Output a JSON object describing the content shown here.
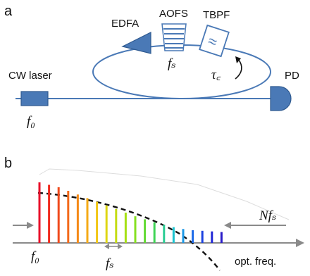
{
  "panel_a": {
    "label": "a",
    "source_label": "CW laser",
    "source_freq": "f₀",
    "amplifier_label": "EDFA",
    "shifter_label": "AOFS",
    "shifter_freq": "fₛ",
    "filter_label": "TBPF",
    "filter_symbol": "≈",
    "delay_label": "τ꜀",
    "detector_label": "PD"
  },
  "panel_b": {
    "label": "b",
    "left_marker": "f₀",
    "spacing_marker": "fₛ",
    "span_marker": "Nfₛ",
    "axis_label": "opt. freq.",
    "comb_colors": [
      "#e8102a",
      "#f02c20",
      "#f04a1c",
      "#f36a1a",
      "#f58a18",
      "#f5aa16",
      "#f2c614",
      "#dfd612",
      "#c4dc12",
      "#a6e014",
      "#86e020",
      "#62da32",
      "#3fd456",
      "#2acc94",
      "#1cc4d0",
      "#1c98e6",
      "#1c6ae8",
      "#1c42e0",
      "#2228d6",
      "#2a1cc8"
    ],
    "comb_relative_heights": [
      1.0,
      0.96,
      0.92,
      0.86,
      0.8,
      0.74,
      0.68,
      0.62,
      0.56,
      0.5,
      0.44,
      0.39,
      0.34,
      0.3,
      0.26,
      0.23,
      0.21,
      0.2,
      0.19,
      0.18
    ]
  },
  "colors": {
    "component_fill": "#4a79b6",
    "component_stroke": "#2f5a90",
    "fiber": "#4a79b6",
    "axis": "#8a8a8a",
    "envelope": "#111111"
  }
}
